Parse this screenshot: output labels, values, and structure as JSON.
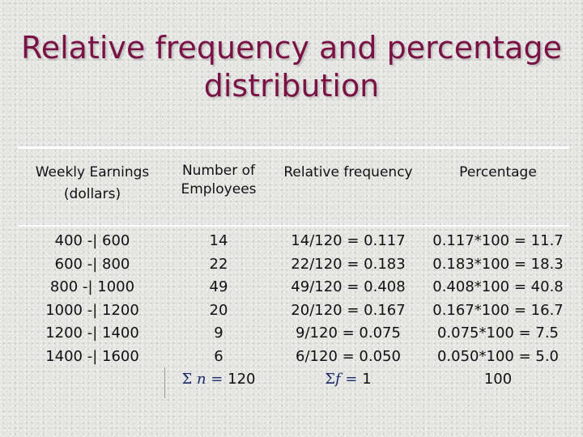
{
  "title": {
    "line1": "Relative frequency and percentage",
    "line2": "distribution"
  },
  "headers": {
    "weekly_earnings_line1": "Weekly Earnings",
    "weekly_earnings_line2": "(dollars)",
    "employees_line1": "Number of",
    "employees_line2": "Employees",
    "relative_frequency": "Relative frequency",
    "percentage": "Percentage"
  },
  "rows": [
    {
      "class": "400 -| 600",
      "employees": "14",
      "relfreq": "14/120 = 0.117",
      "percent": "0.117*100 = 11.7"
    },
    {
      "class": "600 -| 800",
      "employees": "22",
      "relfreq": "22/120 = 0.183",
      "percent": "0.183*100 = 18.3"
    },
    {
      "class": "800 -| 1000",
      "employees": "49",
      "relfreq": "49/120 = 0.408",
      "percent": "0.408*100 = 40.8"
    },
    {
      "class": "1000 -| 1200",
      "employees": "20",
      "relfreq": "20/120 = 0.167",
      "percent": "0.167*100 = 16.7"
    },
    {
      "class": "1200 -| 1400",
      "employees": "9",
      "relfreq": "9/120 = 0.075",
      "percent": "0.075*100 = 7.5"
    },
    {
      "class": "1400 -| 1600",
      "employees": "6",
      "relfreq": "6/120 = 0.050",
      "percent": "0.050*100 = 5.0"
    }
  ],
  "totals": {
    "sigma": "Σ",
    "n_var": "n",
    "equals": "=",
    "n_value": "120",
    "f_var": "f",
    "f_value": "1",
    "percent_total": "100"
  },
  "colors": {
    "title": "#7a1245",
    "math_symbol": "#1a2a6b",
    "rule": "#ffffff",
    "background": "#e4e4e2"
  }
}
